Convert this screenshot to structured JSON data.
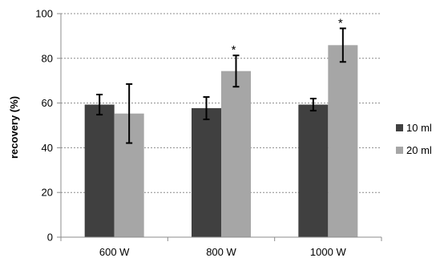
{
  "chart_data": {
    "type": "bar",
    "title": "",
    "xlabel": "",
    "ylabel": "recovery (%)",
    "ylim": [
      0,
      100
    ],
    "yticks": [
      0,
      20,
      40,
      60,
      80,
      100
    ],
    "grid": true,
    "legend_position": "right",
    "categories": [
      "600 W",
      "800 W",
      "1000 W"
    ],
    "series": [
      {
        "name": "10 ml",
        "color": "#404040",
        "values": [
          59.3,
          57.7,
          59.3
        ],
        "errors": [
          4.5,
          5.0,
          2.7
        ]
      },
      {
        "name": "20 ml",
        "color": "#a6a6a6",
        "values": [
          55.3,
          74.3,
          85.9
        ],
        "errors": [
          13.2,
          7.0,
          7.5
        ]
      }
    ],
    "annotations": [
      {
        "category": "800 W",
        "series": "20 ml",
        "text": "*"
      },
      {
        "category": "1000 W",
        "series": "20 ml",
        "text": "*"
      }
    ]
  }
}
